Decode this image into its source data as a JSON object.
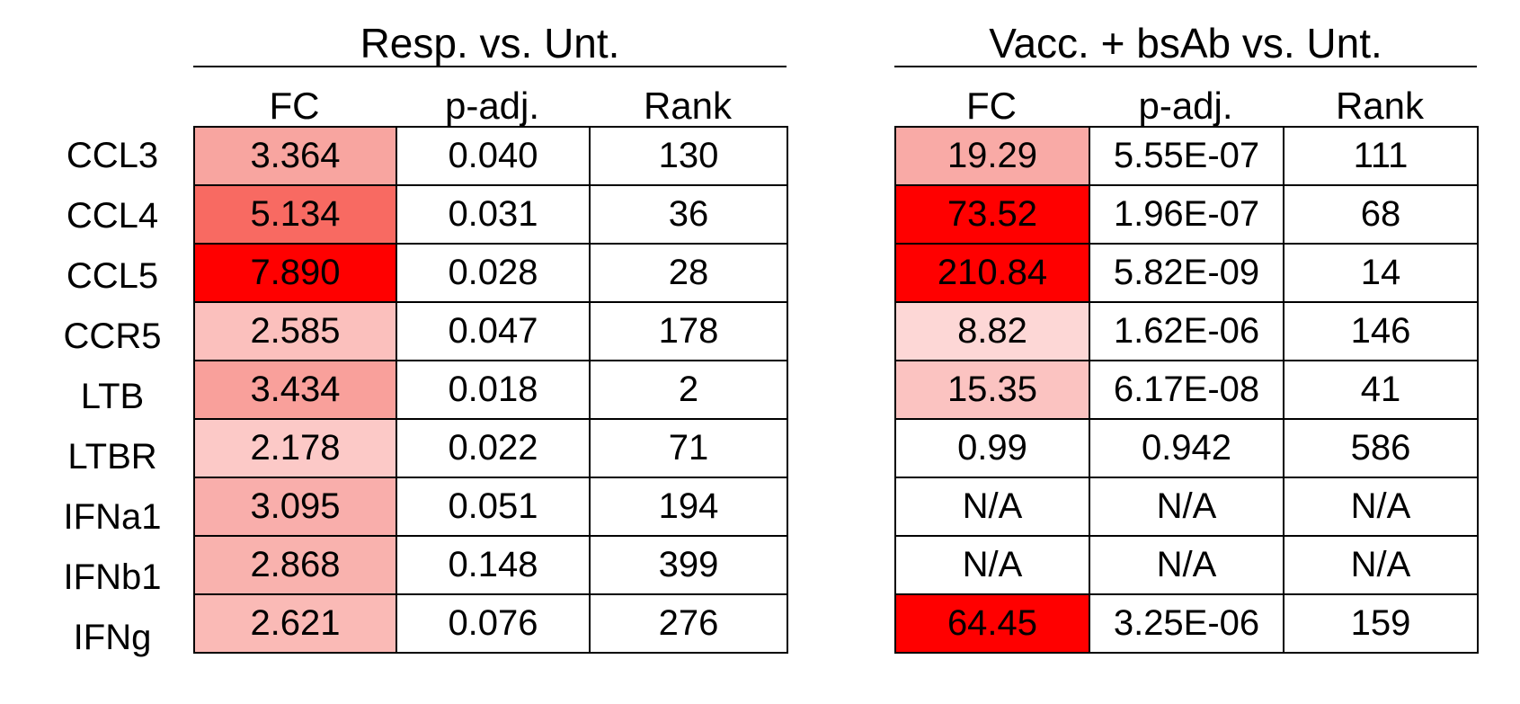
{
  "chart_data": [
    {
      "type": "table",
      "title": "Resp. vs. Unt.",
      "columns": [
        "FC",
        "p-adj.",
        "Rank"
      ],
      "rows": [
        "CCL3",
        "CCL4",
        "CCL5",
        "CCR5",
        "LTB",
        "LTBR",
        "IFNa1",
        "IFNb1",
        "IFNg"
      ],
      "cells": [
        [
          "3.364",
          "0.040",
          "130"
        ],
        [
          "5.134",
          "0.031",
          "36"
        ],
        [
          "7.890",
          "0.028",
          "28"
        ],
        [
          "2.585",
          "0.047",
          "178"
        ],
        [
          "3.434",
          "0.018",
          "2"
        ],
        [
          "2.178",
          "0.022",
          "71"
        ],
        [
          "3.095",
          "0.051",
          "194"
        ],
        [
          "2.868",
          "0.148",
          "399"
        ],
        [
          "2.621",
          "0.076",
          "276"
        ]
      ],
      "fc_fill_colors": [
        "#f8a5a0",
        "#f86a62",
        "#ff0000",
        "#fbc0bd",
        "#f9a09b",
        "#fcc9c7",
        "#f9aeab",
        "#f9b2ae",
        "#fabab6"
      ]
    },
    {
      "type": "table",
      "title": "Vacc. + bsAb vs. Unt.",
      "columns": [
        "FC",
        "p-adj.",
        "Rank"
      ],
      "rows": [
        "CCL3",
        "CCL4",
        "CCL5",
        "CCR5",
        "LTB",
        "LTBR",
        "IFNa1",
        "IFNb1",
        "IFNg"
      ],
      "cells": [
        [
          "19.29",
          "5.55E-07",
          "111"
        ],
        [
          "73.52",
          "1.96E-07",
          "68"
        ],
        [
          "210.84",
          "5.82E-09",
          "14"
        ],
        [
          "8.82",
          "1.62E-06",
          "146"
        ],
        [
          "15.35",
          "6.17E-08",
          "41"
        ],
        [
          "0.99",
          "0.942",
          "586"
        ],
        [
          "N/A",
          "N/A",
          "N/A"
        ],
        [
          "N/A",
          "N/A",
          "N/A"
        ],
        [
          "64.45",
          "3.25E-06",
          "159"
        ]
      ],
      "fc_fill_colors": [
        "#f9aaa6",
        "#ff0000",
        "#ff0000",
        "#fdd7d6",
        "#fbc3c1",
        "#ffffff",
        "#ffffff",
        "#ffffff",
        "#ff0000"
      ]
    }
  ]
}
